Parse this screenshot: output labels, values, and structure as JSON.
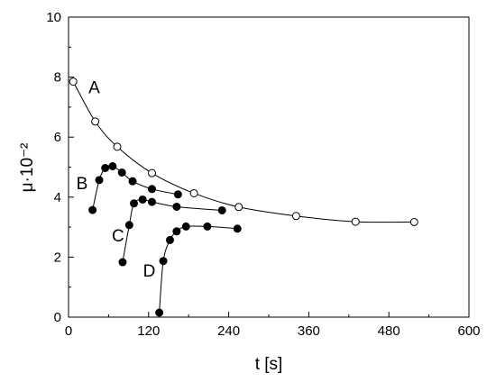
{
  "chart_data": {
    "type": "scatter",
    "xlabel": "t [s]",
    "ylabel": "μ·10⁻²",
    "xlim": [
      0,
      600
    ],
    "ylim": [
      0,
      10
    ],
    "xticks": [
      0,
      120,
      240,
      360,
      480,
      600
    ],
    "yticks": [
      0,
      2,
      4,
      6,
      8,
      10
    ],
    "xtick_labels": [
      "0",
      "120",
      "240",
      "360",
      "480",
      "600"
    ],
    "ytick_labels": [
      "0",
      "2",
      "4",
      "6",
      "8",
      "10"
    ],
    "grid": false,
    "series": [
      {
        "label": "A",
        "marker": "open-circle",
        "x": [
          7,
          40,
          73,
          125,
          188,
          255,
          341,
          430,
          518
        ],
        "y": [
          7.85,
          6.52,
          5.68,
          4.8,
          4.13,
          3.67,
          3.37,
          3.18,
          3.17
        ]
      },
      {
        "label": "B",
        "marker": "filled-circle",
        "x": [
          36,
          46,
          55,
          66,
          80,
          96,
          125,
          164
        ],
        "y": [
          3.57,
          4.57,
          4.97,
          5.03,
          4.82,
          4.53,
          4.27,
          4.09
        ]
      },
      {
        "label": "C",
        "marker": "filled-circle",
        "x": [
          81,
          91,
          98,
          111,
          125,
          162,
          230
        ],
        "y": [
          1.83,
          3.07,
          3.79,
          3.92,
          3.84,
          3.68,
          3.56
        ]
      },
      {
        "label": "D",
        "marker": "filled-circle",
        "x": [
          136,
          142,
          152,
          162,
          176,
          208,
          253
        ],
        "y": [
          0.15,
          1.87,
          2.57,
          2.86,
          3.02,
          3.02,
          2.95
        ]
      }
    ]
  }
}
